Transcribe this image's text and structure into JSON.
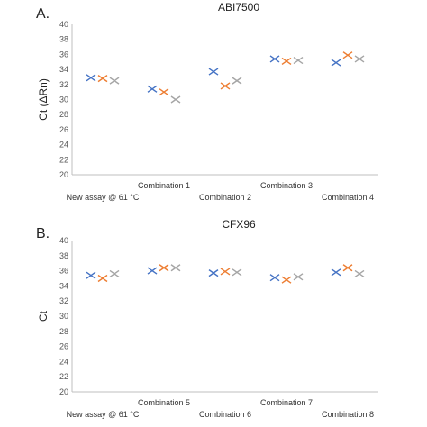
{
  "panels": [
    {
      "letter": "A."
    },
    {
      "letter": "B."
    }
  ],
  "colors": {
    "series_blue": "#4472C4",
    "series_orange": "#ED7D31",
    "series_gray": "#A5A5A5",
    "axis": "#bfbfbf"
  },
  "chart_data": [
    {
      "type": "scatter",
      "title": "ABI7500",
      "ylabel": "Ct (ΔRn)",
      "xlabel": "",
      "ylim": [
        20,
        40
      ],
      "yticks": [
        20,
        22,
        24,
        26,
        28,
        30,
        32,
        34,
        36,
        38,
        40
      ],
      "grid": false,
      "categories": [
        "New assay @ 61 °C",
        "Combination 1",
        "Combination 2",
        "Combination 3",
        "Combination 4"
      ],
      "category_label_rows": [
        "bottom",
        "top",
        "bottom",
        "top",
        "bottom"
      ],
      "series": [
        {
          "values": [
            32.9,
            31.4,
            33.7,
            35.4,
            34.9
          ]
        },
        {
          "values": [
            32.8,
            31.0,
            31.8,
            35.1,
            35.9
          ]
        },
        {
          "values": [
            32.5,
            30.0,
            32.5,
            35.2,
            35.4
          ]
        }
      ]
    },
    {
      "type": "scatter",
      "title": "CFX96",
      "ylabel": "Ct",
      "xlabel": "",
      "ylim": [
        20,
        40
      ],
      "yticks": [
        20,
        22,
        24,
        26,
        28,
        30,
        32,
        34,
        36,
        38,
        40
      ],
      "grid": false,
      "categories": [
        "New assay @ 61 °C",
        "Combination 5",
        "Combination 6",
        "Combination 7",
        "Combination 8"
      ],
      "category_label_rows": [
        "bottom",
        "top",
        "bottom",
        "top",
        "bottom"
      ],
      "series": [
        {
          "values": [
            35.4,
            36.0,
            35.7,
            35.1,
            35.8
          ]
        },
        {
          "values": [
            35.0,
            36.4,
            35.9,
            34.8,
            36.4
          ]
        },
        {
          "values": [
            35.6,
            36.4,
            35.8,
            35.2,
            35.6
          ]
        }
      ]
    }
  ]
}
